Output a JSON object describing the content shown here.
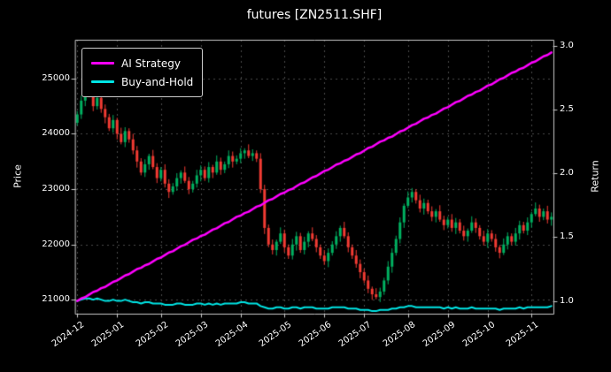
{
  "window": {
    "title": "futures [ZN2511.SHF]"
  },
  "legend": {
    "items": [
      {
        "label": "AI Strategy",
        "series_index": 1
      },
      {
        "label": "Buy-and-Hold",
        "series_index": 2
      }
    ]
  },
  "chart_data": {
    "type": "candlestick",
    "title": "futures [ZN2511.SHF]",
    "xlabel": "",
    "ylabel": "Price",
    "ylabel_right": "Return",
    "grid": true,
    "legend_position": "upper left",
    "background": "#000000",
    "price_range": [
      20750,
      25700
    ],
    "return_range": [
      0.9,
      3.05
    ],
    "price_ticks": [
      21000,
      22000,
      23000,
      24000,
      25000
    ],
    "return_ticks": [
      1.0,
      1.5,
      2.0,
      2.5,
      3.0
    ],
    "x_ticks": [
      {
        "label": "2024-12",
        "i": 0
      },
      {
        "label": "2025-01",
        "i": 10
      },
      {
        "label": "2025-02",
        "i": 21
      },
      {
        "label": "2025-03",
        "i": 31
      },
      {
        "label": "2025-04",
        "i": 41
      },
      {
        "label": "2025-05",
        "i": 52
      },
      {
        "label": "2025-06",
        "i": 62
      },
      {
        "label": "2025-07",
        "i": 72
      },
      {
        "label": "2025-08",
        "i": 83
      },
      {
        "label": "2025-09",
        "i": 93
      },
      {
        "label": "2025-10",
        "i": 103
      },
      {
        "label": "2025-11",
        "i": 114
      }
    ],
    "colors": {
      "up": "#00b060",
      "down": "#f23b33",
      "grid": "#4a4a4a",
      "frame": "#c9c9c9",
      "text": "#ffffff"
    },
    "series": [
      {
        "name": "ZN2511.SHF",
        "type": "candlestick",
        "axis": "price",
        "ohlc": [
          [
            24200,
            24410,
            24150,
            24350
          ],
          [
            24350,
            24690,
            24270,
            24600
          ],
          [
            24600,
            24890,
            24500,
            24850
          ],
          [
            24850,
            24960,
            24660,
            24700
          ],
          [
            24700,
            24770,
            24410,
            24500
          ],
          [
            24500,
            24700,
            24440,
            24650
          ],
          [
            24650,
            24750,
            24380,
            24450
          ],
          [
            24450,
            24530,
            24190,
            24300
          ],
          [
            24300,
            24360,
            24050,
            24100
          ],
          [
            24100,
            24340,
            24020,
            24250
          ],
          [
            24250,
            24290,
            23900,
            24000
          ],
          [
            24000,
            24110,
            23810,
            23850
          ],
          [
            23850,
            24120,
            23760,
            24050
          ],
          [
            24050,
            24100,
            23840,
            23900
          ],
          [
            23900,
            24000,
            23630,
            23700
          ],
          [
            23700,
            23780,
            23390,
            23500
          ],
          [
            23500,
            23560,
            23250,
            23300
          ],
          [
            23300,
            23540,
            23220,
            23450
          ],
          [
            23450,
            23640,
            23350,
            23600
          ],
          [
            23600,
            23710,
            23360,
            23400
          ],
          [
            23400,
            23470,
            23110,
            23200
          ],
          [
            23200,
            23400,
            23140,
            23350
          ],
          [
            23350,
            23450,
            23030,
            23100
          ],
          [
            23100,
            23180,
            22840,
            22950
          ],
          [
            22950,
            23110,
            22900,
            23050
          ],
          [
            23050,
            23290,
            22970,
            23200
          ],
          [
            23200,
            23340,
            23100,
            23300
          ],
          [
            23300,
            23410,
            23110,
            23150
          ],
          [
            23150,
            23220,
            22910,
            23000
          ],
          [
            23000,
            23150,
            22940,
            23100
          ],
          [
            23100,
            23350,
            23030,
            23250
          ],
          [
            23250,
            23430,
            23140,
            23350
          ],
          [
            23350,
            23410,
            23150,
            23200
          ],
          [
            23200,
            23490,
            23120,
            23400
          ],
          [
            23400,
            23440,
            23200,
            23300
          ],
          [
            23300,
            23610,
            23260,
            23500
          ],
          [
            23500,
            23570,
            23260,
            23350
          ],
          [
            23350,
            23500,
            23290,
            23450
          ],
          [
            23450,
            23700,
            23380,
            23600
          ],
          [
            23600,
            23680,
            23390,
            23500
          ],
          [
            23500,
            23610,
            23450,
            23550
          ],
          [
            23550,
            23740,
            23470,
            23650
          ],
          [
            23650,
            23740,
            23550,
            23700
          ],
          [
            23700,
            23810,
            23560,
            23600
          ],
          [
            23600,
            23720,
            23510,
            23650
          ],
          [
            23650,
            23700,
            23490,
            23550
          ],
          [
            23550,
            23650,
            22930,
            23000
          ],
          [
            23000,
            23080,
            22190,
            22300
          ],
          [
            22300,
            22360,
            21950,
            22000
          ],
          [
            22000,
            22090,
            21820,
            21900
          ],
          [
            21900,
            22090,
            21800,
            22050
          ],
          [
            22050,
            22310,
            22010,
            22200
          ],
          [
            22200,
            22270,
            21860,
            21950
          ],
          [
            21950,
            22000,
            21740,
            21800
          ],
          [
            21800,
            22100,
            21730,
            22000
          ],
          [
            22000,
            22230,
            21890,
            22150
          ],
          [
            22150,
            22210,
            21850,
            21900
          ],
          [
            21900,
            22140,
            21820,
            22050
          ],
          [
            22050,
            22240,
            21950,
            22200
          ],
          [
            22200,
            22310,
            22060,
            22100
          ],
          [
            22100,
            22170,
            21860,
            21950
          ],
          [
            21950,
            22000,
            21740,
            21800
          ],
          [
            21800,
            21900,
            21630,
            21700
          ],
          [
            21700,
            21930,
            21590,
            21850
          ],
          [
            21850,
            22060,
            21800,
            22000
          ],
          [
            22000,
            22240,
            21920,
            22150
          ],
          [
            22150,
            22340,
            22050,
            22300
          ],
          [
            22300,
            22410,
            22110,
            22150
          ],
          [
            22150,
            22220,
            21860,
            21950
          ],
          [
            21950,
            22000,
            21740,
            21800
          ],
          [
            21800,
            21900,
            21580,
            21650
          ],
          [
            21650,
            21730,
            21390,
            21500
          ],
          [
            21500,
            21560,
            21300,
            21350
          ],
          [
            21350,
            21440,
            21120,
            21200
          ],
          [
            21200,
            21240,
            21000,
            21100
          ],
          [
            21100,
            21210,
            21010,
            21050
          ],
          [
            21050,
            21220,
            20960,
            21150
          ],
          [
            21150,
            21400,
            21090,
            21350
          ],
          [
            21350,
            21700,
            21280,
            21600
          ],
          [
            21600,
            21930,
            21490,
            21850
          ],
          [
            21850,
            22160,
            21800,
            22100
          ],
          [
            22100,
            22490,
            22020,
            22400
          ],
          [
            22400,
            22740,
            22300,
            22700
          ],
          [
            22700,
            22960,
            22660,
            22850
          ],
          [
            22850,
            23020,
            22760,
            22950
          ],
          [
            22950,
            23000,
            22740,
            22800
          ],
          [
            22800,
            22900,
            22580,
            22650
          ],
          [
            22650,
            22830,
            22540,
            22750
          ],
          [
            22750,
            22810,
            22550,
            22600
          ],
          [
            22600,
            22690,
            22420,
            22500
          ],
          [
            22500,
            22640,
            22400,
            22600
          ],
          [
            22600,
            22710,
            22410,
            22450
          ],
          [
            22450,
            22520,
            22260,
            22350
          ],
          [
            22350,
            22500,
            22290,
            22450
          ],
          [
            22450,
            22550,
            22230,
            22300
          ],
          [
            22300,
            22480,
            22190,
            22400
          ],
          [
            22400,
            22460,
            22200,
            22250
          ],
          [
            22250,
            22340,
            22070,
            22150
          ],
          [
            22150,
            22290,
            22050,
            22250
          ],
          [
            22250,
            22510,
            22210,
            22400
          ],
          [
            22400,
            22470,
            22210,
            22300
          ],
          [
            22300,
            22350,
            22090,
            22150
          ],
          [
            22150,
            22250,
            21980,
            22050
          ],
          [
            22050,
            22280,
            21940,
            22200
          ],
          [
            22200,
            22260,
            22050,
            22100
          ],
          [
            22100,
            22190,
            21870,
            21950
          ],
          [
            21950,
            21990,
            21750,
            21850
          ],
          [
            21850,
            22110,
            21810,
            22000
          ],
          [
            22000,
            22220,
            21910,
            22150
          ],
          [
            22150,
            22200,
            21990,
            22050
          ],
          [
            22050,
            22300,
            21980,
            22200
          ],
          [
            22200,
            22430,
            22090,
            22350
          ],
          [
            22350,
            22410,
            22200,
            22250
          ],
          [
            22250,
            22490,
            22170,
            22400
          ],
          [
            22400,
            22590,
            22300,
            22550
          ],
          [
            22550,
            22760,
            22510,
            22650
          ],
          [
            22650,
            22720,
            22410,
            22500
          ],
          [
            22500,
            22650,
            22440,
            22600
          ],
          [
            22600,
            22700,
            22380,
            22450
          ],
          [
            22450,
            22580,
            22340,
            22500
          ]
        ]
      },
      {
        "name": "AI Strategy",
        "type": "line",
        "axis": "return",
        "color": "#ff00ff",
        "values": [
          1.0,
          1.02,
          1.03,
          1.05,
          1.07,
          1.08,
          1.1,
          1.11,
          1.13,
          1.15,
          1.16,
          1.18,
          1.2,
          1.21,
          1.23,
          1.25,
          1.26,
          1.28,
          1.29,
          1.31,
          1.33,
          1.34,
          1.36,
          1.38,
          1.39,
          1.41,
          1.43,
          1.44,
          1.46,
          1.48,
          1.49,
          1.51,
          1.52,
          1.54,
          1.56,
          1.57,
          1.59,
          1.61,
          1.62,
          1.64,
          1.66,
          1.67,
          1.69,
          1.7,
          1.72,
          1.74,
          1.75,
          1.77,
          1.79,
          1.8,
          1.82,
          1.84,
          1.85,
          1.87,
          1.88,
          1.9,
          1.92,
          1.93,
          1.95,
          1.97,
          1.98,
          2.0,
          2.02,
          2.03,
          2.05,
          2.07,
          2.08,
          2.1,
          2.11,
          2.13,
          2.15,
          2.16,
          2.18,
          2.2,
          2.21,
          2.23,
          2.25,
          2.26,
          2.28,
          2.29,
          2.31,
          2.33,
          2.34,
          2.36,
          2.38,
          2.39,
          2.41,
          2.43,
          2.44,
          2.46,
          2.47,
          2.49,
          2.51,
          2.52,
          2.54,
          2.56,
          2.57,
          2.59,
          2.61,
          2.62,
          2.64,
          2.65,
          2.67,
          2.69,
          2.7,
          2.72,
          2.74,
          2.75,
          2.77,
          2.79,
          2.8,
          2.82,
          2.83,
          2.85,
          2.87,
          2.88,
          2.9,
          2.92,
          2.93,
          2.95
        ]
      },
      {
        "name": "Buy-and-Hold",
        "type": "line",
        "axis": "return",
        "color": "#00e5e5",
        "values": [
          1.0,
          1.01,
          1.02,
          1.02,
          1.01,
          1.02,
          1.01,
          1.0,
          1.0,
          1.01,
          1.0,
          1.0,
          1.01,
          1.0,
          0.99,
          0.99,
          0.98,
          0.99,
          0.99,
          0.98,
          0.98,
          0.98,
          0.97,
          0.97,
          0.97,
          0.98,
          0.98,
          0.97,
          0.97,
          0.97,
          0.98,
          0.98,
          0.97,
          0.98,
          0.97,
          0.98,
          0.97,
          0.98,
          0.98,
          0.98,
          0.98,
          0.99,
          0.99,
          0.98,
          0.98,
          0.98,
          0.96,
          0.95,
          0.94,
          0.94,
          0.95,
          0.95,
          0.94,
          0.94,
          0.95,
          0.95,
          0.94,
          0.95,
          0.95,
          0.95,
          0.94,
          0.94,
          0.94,
          0.94,
          0.95,
          0.95,
          0.95,
          0.95,
          0.94,
          0.94,
          0.94,
          0.93,
          0.93,
          0.93,
          0.92,
          0.92,
          0.93,
          0.93,
          0.93,
          0.94,
          0.94,
          0.95,
          0.95,
          0.96,
          0.96,
          0.95,
          0.95,
          0.95,
          0.95,
          0.95,
          0.95,
          0.95,
          0.94,
          0.95,
          0.94,
          0.95,
          0.94,
          0.94,
          0.94,
          0.95,
          0.94,
          0.94,
          0.94,
          0.94,
          0.94,
          0.94,
          0.93,
          0.94,
          0.94,
          0.94,
          0.94,
          0.95,
          0.94,
          0.95,
          0.95,
          0.95,
          0.95,
          0.95,
          0.95,
          0.96
        ]
      }
    ]
  }
}
